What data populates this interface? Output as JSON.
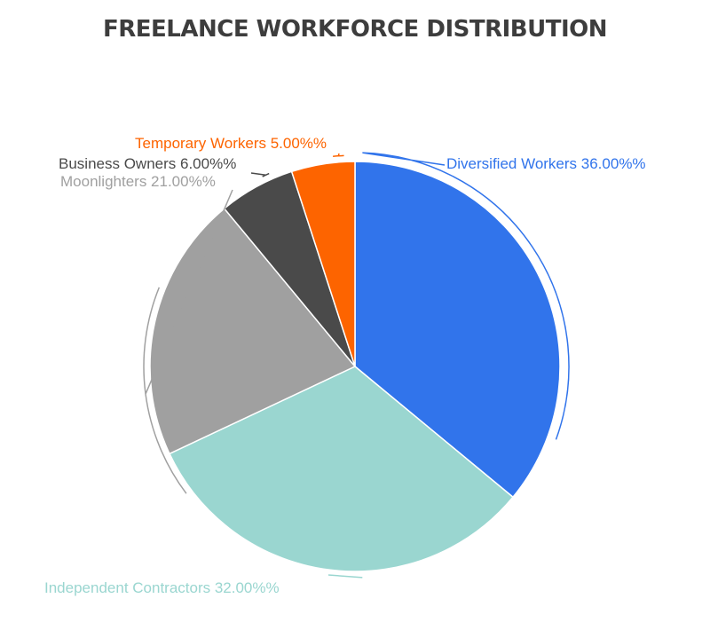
{
  "chart_data": {
    "type": "pie",
    "title": "FREELANCE WORKFORCE DISTRIBUTION",
    "slices": [
      {
        "label": "Diversified Workers",
        "value": 36.0,
        "display": "Diversified Workers 36.00%%",
        "color": "#3174eb"
      },
      {
        "label": "Independent Contractors",
        "value": 32.0,
        "display": "Independent Contractors 32.00%%",
        "color": "#9ad6d0"
      },
      {
        "label": "Moonlighters",
        "value": 21.0,
        "display": "Moonlighters 21.00%%",
        "color": "#a0a0a0"
      },
      {
        "label": "Business Owners",
        "value": 6.0,
        "display": "Business Owners 6.00%%",
        "color": "#4a4a4a"
      },
      {
        "label": "Temporary Workers",
        "value": 5.0,
        "display": "Temporary Workers 5.00%%",
        "color": "#fd6400"
      }
    ],
    "start_angle": "top",
    "direction": "clockwise",
    "legend": "none"
  }
}
